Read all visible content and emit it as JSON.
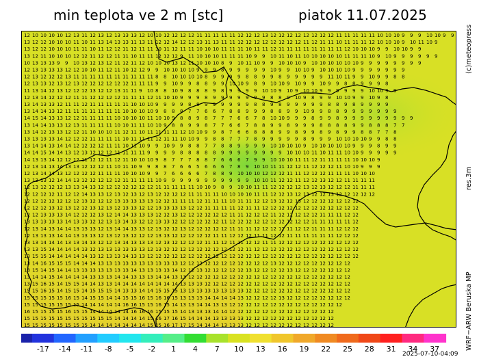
{
  "title": "min teplota ve 2 m [stc]",
  "date": "piatok 11.07.2025",
  "side_labels": {
    "top": "(c)meteopress",
    "middle": "res.3m",
    "bottom": "WRF−ARW  Beruska  MP"
  },
  "timestamp": "2025-07-10-04:09",
  "legend": {
    "labels": [
      "-17",
      "-14",
      "-11",
      "-8",
      "-5",
      "-2",
      "1",
      "4",
      "7",
      "10",
      "13",
      "16",
      "19",
      "22",
      "25",
      "28",
      "31",
      "34",
      "37"
    ],
    "colors": [
      "#2233dd",
      "#2266ff",
      "#22a0ff",
      "#22ccff",
      "#22e6ee",
      "#33eebb",
      "#55ee88",
      "#33dd33",
      "#a8e22c",
      "#d9e222",
      "#f0e030",
      "#f0c62c",
      "#f0a82a",
      "#f08a22",
      "#f06a1c",
      "#f04818",
      "#ff2020",
      "#ff2a80",
      "#ff33cc"
    ]
  },
  "grid_rows": [
    "12 10 10 10 10 12 13 11 12 13 12 13 13 13 12 10 10 12 12 12 12 11 11 11 11 11 12 12 12 13 12 12 12 12 12 12 12 12 11 11 11 11 11 10 10 10 9 9 9 10 10 9 9",
    "13 12 12 10 10 10 11 10 11 13 14 13 13 11 13 11 12 12 14 12 12 13 11 13 11 11 12 12 12 12 12 12 12 12 11 12 11 11 10 11 11 11 12 10 10 10 9 10 11 10 9",
    "13 12 12 10 10 10 11 11 10 11 12 12 11 12 11 11 10 11 12 11 11 10 10 10 11 11 11 10 11 11 12 11 11 11 11 11 11 11 11 12 10 10 10 9 9 10 10 9 9",
    "13 12 11 10 10 10 12 12 11 12 12 11 11 10 11 11 12 12 12 9 11 10 10 10 11 11 11 10 9 9 10 11 10 11 10 10 10 10 10 11 11 11 10 9 10 9 9 9 9 9 9",
    "10 13 13 13 9 9 10 13 12 13 12 11 12 11 12 10 10 10 13 12 11 10 10 10 8 9 10 11 10 9 9 10 10 10 9 10 10 10 10 10 10 9 9 9 9 9 9 9 9",
    "12 13 13 13 13 12 12 10 10 11 12 11 10 12 12 9 9 10 10 10 10 9 9 9 8 9 9 9 9 9 10 9 9 10 10 9 10 10 10 10 9 9 9 9 9 9 9",
    "12 13 12 12 12 13 11 11 11 11 11 11 11 11 11 11 8 8 10 10 10 10 8 9 9 9 9 8 8 9 9 8 9 9 9 9 9 11 10 11 9 9 10 9 9 8 8",
    "12 13 13 12 13 12 13 12 12 12 12 12 12 11 11 11 9 9 10 9 9 8 8 9 9 10 10 9 8 9 10 10 9 10 9 9 10 9 9 8 8 9 9 9 8",
    "11 13 14 12 13 12 12 12 13 12 12 13 11 11 9 10 8 8 10 9 8 8 8 9 8 9 9 9 9 10 10 9 10 9 10 10 9 9 9 9 9 9 10 10 9 9",
    "12 13 14 12 12 12 11 11 12 12 12 12 11 11 11 12 11 10 10 9 9 9 8 9 9 9 9 9 9 9 8 8 9 10 9 8 9 9 10 10 9 9 10 9 8",
    "13 14 13 13 12 11 11 12 11 11 11 11 11 10 10 10 9 9 9 9 8 8 9 9 9 9 9 9 8 8 9 8 9 9 9 9 9 8 8 9 8 9 9 9 9",
    "13 14 14 13 12 11 11 11 11 11 11 11 10 10 10 10 9 8 8 8 7 7 6 6 7 8 8 9 9 9 8 8 9 9 10 9 9 8 8 9 9 9 9 9 9 9",
    "14 15 14 13 13 12 12 11 11 11 11 10 10 10 10 11 10 10 9 8 8 9 8 7 7 7 6 6 7 8 10 10 9 9 9 8 9 9 8 9 9 9 9 9 9 9 9 9",
    "13 14 14 13 13 12 13 11 11 11 11 10 10 11 11 10 10 9 8 8 9 9 8 7 7 6 6 7 8 8 9 9 8 9 9 9 8 8 8 8 9 9 8 8 8 7 7",
    "13 14 12 13 13 12 12 11 10 10 10 11 12 11 10 11 11 11 11 12 10 10 9 9 8 7 6 6 8 8 8 9 9 8 9 9 8 9 8 9 9 8 8 7 7 8",
    "13 13 13 13 14 12 12 12 11 11 11 11 10 11 11 11 12 11 11 10 10 9 9 8 8 7 7 7 8 9 9 9 9 9 8 9 9 9 10 10 10 10 9 9 8 8",
    "13 14 14 13 14 14 12 12 12 12 11 11 10 11 10 9 9 10 9 9 8 8 7 7 8 8 9 9 9 9 10 10 10 10 9 10 10 10 10 10 9 9 9 8 9 9",
    "14 14 15 14 14 13 12 13 12 12 12 11 11 11 11 9 9 9 9 8 8 8 8 8 9 9 9 9 9 9 9 9 10 10 10 11 10 11 11 10 10 9 9 9 9 9",
    "14 13 13 14 12 12 12 11 12 12 11 12 11 10 10 10 9 8 7 7 7 8 8 7 6 6 6 7 9 9 10 10 10 11 11 12 11 11 11 11 10 10 10 9",
    "12 13 14 13 14 13 13 12 12 12 11 10 11 10 9 9 8 8 7 6 6 5 6 6 6 7 8 9 10 10 11 11 12 12 11 12 12 12 11 10 10 9 9 9",
    "12 13 14 14 13 12 12 12 12 11 11 11 10 10 10 9 9 7 6 6 6 6 7 8 8 9 10 10 10 12 12 12 11 11 12 12 12 11 11 11 10 10 10",
    "13 13 13 12 14 14 13 12 12 12 12 12 11 11 11 11 10 9 9 9 9 9 9 9 9 9 9 9 10 10 11 12 12 11 12 12 13 12 12 11 11 11 11",
    "12 13 12 12 12 13 13 14 13 12 12 12 12 12 12 12 11 11 11 11 11 10 10 9 8 9 10 10 11 11 12 12 12 12 13 12 13 12 12 12 11 11 11",
    "12 12 12 12 11 12 12 14 13 13 12 13 12 13 12 13 12 12 12 12 11 11 11 11 10 10 10 10 11 11 12 12 13 12 13 12 12 13 12 12 12 12 12",
    "12 12 12 12 12 12 12 13 12 12 12 13 13 13 13 13 12 12 11 11 11 12 11 11 11 10 11 11 12 12 13 12 12 13 12 12 12 12 12 12 12",
    "12 12 12 13 12 13 12 12 13 12 13 12 13 13 12 12 13 13 13 13 12 12 11 11 11 11 12 11 11 12 12 12 12 12 12 12 12 12 12 12 12",
    "12 12 13 13 13 14 12 12 12 13 12 14 14 13 13 13 12 12 13 12 12 12 12 12 12 11 11 12 12 12 11 12 12 12 12 12 11 11 11 12 12",
    "13 13 13 13 13 14 13 13 12 12 13 13 14 13 12 12 13 13 12 12 12 12 12 12 11 12 12 12 12 12 12 12 12 12 12 11 11 11 11 11 12",
    "12 13 14 13 14 14 13 13 13 12 13 14 14 13 13 12 13 12 12 13 12 12 12 12 12 11 11 11 12 12 12 12 11 12 12 11 11 11 12 12 12",
    "12 13 13 13 14 14 13 13 13 12 13 12 13 12 12 12 13 13 12 12 12 12 12 11 11 12 12 12 11 11 12 12 11 11 11 11 11 11 12 12 12",
    "13 13 14 14 14 13 13 14 13 12 12 13 14 13 13 13 12 13 12 12 12 12 11 11 12 11 11 12 12 11 11 12 12 12 12 12 12 12 12 12 12",
    "13 13 15 14 14 14 14 13 12 13 13 13 13 13 13 12 13 12 12 12 12 12 12 12 12 12 12 11 12 12 12 12 12 12 12 12 12 12 12 12 12",
    "13 15 15 14 14 14 14 14 13 12 13 13 14 13 13 12 12 12 12 12 12 12 12 12 12 12 12 12 12 12 12 12 12 12 12 12 12 12 12 12 12",
    "13 14 16 15 15 15 14 14 14 13 13 13 13 13 13 13 13 13 13 12 12 12 12 12 12 12 12 12 12 12 13 12 12 12 12 12 12 12 12 12",
    "13 15 14 15 14 14 13 13 13 13 13 13 13 14 13 13 13 13 14 12 12 13 12 12 12 12 12 13 12 12 12 12 13 12 12 12 12 12 12 12",
    "13 14 14 15 14 14 14 14 13 13 13 14 14 13 13 13 14 14 13 13 12 12 12 12 12 12 12 12 12 12 12 12 12 12 12 12 12 12 12 12",
    "13 15 16 15 14 15 15 14 14 13 13 14 14 14 14 14 14 14 14 13 13 13 12 12 12 12 12 12 12 12 12 12 12 12 12 12 12 12 12 12",
    "15 15 16 15 14 15 15 14 15 15 15 14 13 13 14 14 15 15 15 13 13 13 13 13 13 13 13 12 12 12 12 12 12 12 12 12 12 12 12 12",
    "15 15 15 15 15 16 15 14 15 15 14 14 15 15 16 15 16 16 15 13 13 13 14 14 14 14 13 12 12 12 12 13 12 12 12 12 12 12 12 12",
    "15 15 15 15 15 15 15 14 14 14 14 14 16 16 15 15 16 15 14 13 13 14 14 13 13 12 12 12 12 12 12 12 12 12 12 12 12 12 12",
    "16 15 15 15 15 16 15 15 14 14 14 14 14 16 16 16 15 15 15 14 13 13 13 14 14 12 12 12 12 12 12 12 12 12 12 12 12 12",
    "15 15 15 15 15 15 15 15 15 15 15 14 14 14 14 15 16 17 16 15 14 14 14 13 13 13 13 12 12 12 12 12 12 12 12 12 12 12",
    "15 15 15 15 15 15 15 15 14 14 14 14 14 14 14 15 15 16 17 17 15 14 14 14 13 13 13 12 12 12 12 12 12 12 12 12 12 12"
  ]
}
